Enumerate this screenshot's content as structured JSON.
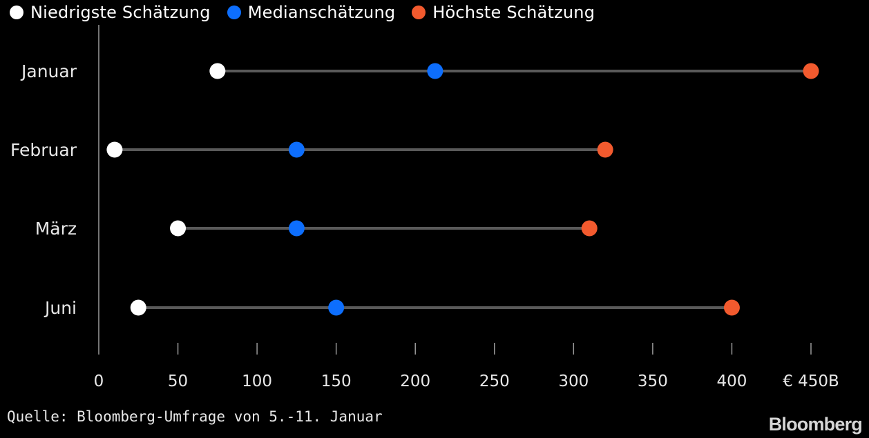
{
  "legend": {
    "items": [
      {
        "label": "Niedrigste Schätzung",
        "color": "#ffffff"
      },
      {
        "label": "Medianschätzung",
        "color": "#0d6efd"
      },
      {
        "label": "Höchste Schätzung",
        "color": "#f25a2e"
      }
    ]
  },
  "chart_data": {
    "type": "dot-range",
    "categories": [
      "Januar",
      "Februar",
      "März",
      "Juni"
    ],
    "series": [
      {
        "name": "Niedrigste Schätzung",
        "color": "#ffffff",
        "values": [
          75,
          10,
          50,
          25
        ]
      },
      {
        "name": "Medianschätzung",
        "color": "#0d6efd",
        "values": [
          212.5,
          125,
          125,
          150
        ]
      },
      {
        "name": "Höchste Schätzung",
        "color": "#f25a2e",
        "values": [
          450,
          320,
          310,
          400
        ]
      }
    ],
    "xlim": [
      0,
      450
    ],
    "xticks": [
      0,
      50,
      100,
      150,
      200,
      250,
      300,
      350,
      400,
      450
    ],
    "xtick_labels": [
      "0",
      "50",
      "100",
      "150",
      "200",
      "250",
      "300",
      "350",
      "400",
      "€ 450B"
    ],
    "grid": false,
    "legend_position": "top-left"
  },
  "footer": {
    "source": "Quelle: Bloomberg-Umfrage von 5.-11. Januar",
    "brand": "Bloomberg"
  }
}
